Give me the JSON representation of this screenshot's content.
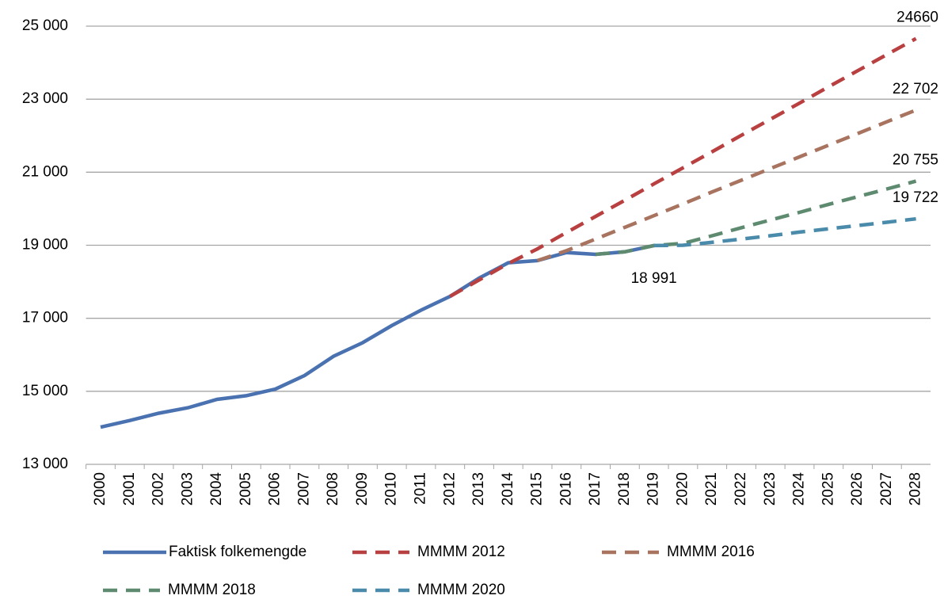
{
  "chart_data": {
    "type": "line",
    "categories": [
      "2000",
      "2001",
      "2002",
      "2003",
      "2004",
      "2005",
      "2006",
      "2007",
      "2008",
      "2009",
      "2010",
      "2011",
      "2012",
      "2013",
      "2014",
      "2015",
      "2016",
      "2017",
      "2018",
      "2019",
      "2020",
      "2021",
      "2022",
      "2023",
      "2024",
      "2025",
      "2026",
      "2027",
      "2028"
    ],
    "ylim": [
      13000,
      25000
    ],
    "yticks": [
      {
        "value": 13000,
        "label": "13 000"
      },
      {
        "value": 15000,
        "label": "15 000"
      },
      {
        "value": 17000,
        "label": "17 000"
      },
      {
        "value": 19000,
        "label": "19 000"
      },
      {
        "value": 21000,
        "label": "21 000"
      },
      {
        "value": 23000,
        "label": "23 000"
      },
      {
        "value": 25000,
        "label": "25 000"
      }
    ],
    "grid": true,
    "legend": "bottom",
    "series": [
      {
        "name": "Faktisk folkemengde",
        "color": "#4a72b0",
        "style": "solid",
        "values": [
          14020,
          14200,
          14400,
          14550,
          14780,
          14880,
          15060,
          15430,
          15960,
          16330,
          16800,
          17220,
          17600,
          18100,
          18520,
          18580,
          18800,
          18750,
          18820,
          18991,
          null,
          null,
          null,
          null,
          null,
          null,
          null,
          null,
          null
        ],
        "value_labels": [
          null,
          null,
          null,
          null,
          null,
          null,
          null,
          null,
          null,
          null,
          null,
          null,
          null,
          null,
          null,
          null,
          null,
          null,
          null,
          "18 991",
          null,
          null,
          null,
          null,
          null,
          null,
          null,
          null,
          null
        ]
      },
      {
        "name": "MMMM 2012",
        "color": "#b94040",
        "style": "dashed",
        "values": [
          null,
          null,
          null,
          null,
          null,
          null,
          null,
          null,
          null,
          null,
          null,
          null,
          17600,
          18050,
          18500,
          18900,
          19350,
          19790,
          20230,
          20680,
          21120,
          21560,
          22010,
          22450,
          22890,
          23340,
          23780,
          24220,
          24660
        ],
        "value_labels": [
          null,
          null,
          null,
          null,
          null,
          null,
          null,
          null,
          null,
          null,
          null,
          null,
          null,
          null,
          null,
          null,
          null,
          null,
          null,
          null,
          null,
          null,
          null,
          null,
          null,
          null,
          null,
          null,
          "24660"
        ]
      },
      {
        "name": "MMMM 2016",
        "color": "#a87460",
        "style": "dashed",
        "values": [
          null,
          null,
          null,
          null,
          null,
          null,
          null,
          null,
          null,
          null,
          null,
          null,
          null,
          null,
          null,
          18580,
          18850,
          19170,
          19490,
          19810,
          20130,
          20460,
          20780,
          21100,
          21420,
          21740,
          22060,
          22380,
          22702
        ],
        "value_labels": [
          null,
          null,
          null,
          null,
          null,
          null,
          null,
          null,
          null,
          null,
          null,
          null,
          null,
          null,
          null,
          null,
          null,
          null,
          null,
          null,
          null,
          null,
          null,
          null,
          null,
          null,
          null,
          null,
          "22 702"
        ]
      },
      {
        "name": "MMMM 2018",
        "color": "#5e8a70",
        "style": "dashed",
        "values": [
          null,
          null,
          null,
          null,
          null,
          null,
          null,
          null,
          null,
          null,
          null,
          null,
          null,
          null,
          null,
          null,
          null,
          18750,
          18820,
          18991,
          19050,
          19260,
          19480,
          19690,
          19900,
          20120,
          20330,
          20540,
          20755
        ],
        "value_labels": [
          null,
          null,
          null,
          null,
          null,
          null,
          null,
          null,
          null,
          null,
          null,
          null,
          null,
          null,
          null,
          null,
          null,
          null,
          null,
          null,
          null,
          null,
          null,
          null,
          null,
          null,
          null,
          null,
          "20 755"
        ]
      },
      {
        "name": "MMMM 2020",
        "color": "#4a8bab",
        "style": "dashed",
        "values": [
          null,
          null,
          null,
          null,
          null,
          null,
          null,
          null,
          null,
          null,
          null,
          null,
          null,
          null,
          null,
          null,
          null,
          null,
          null,
          18991,
          19000,
          19080,
          19170,
          19260,
          19360,
          19450,
          19540,
          19630,
          19722
        ],
        "value_labels": [
          null,
          null,
          null,
          null,
          null,
          null,
          null,
          null,
          null,
          null,
          null,
          null,
          null,
          null,
          null,
          null,
          null,
          null,
          null,
          null,
          null,
          null,
          null,
          null,
          null,
          null,
          null,
          null,
          "19 722"
        ]
      }
    ]
  }
}
